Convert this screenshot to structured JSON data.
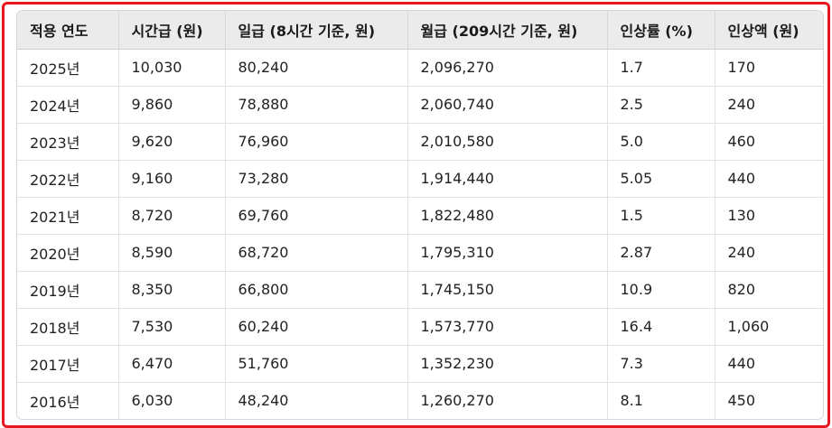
{
  "table": {
    "headers": [
      "적용 연도",
      "시간급 (원)",
      "일급 (8시간 기준, 원)",
      "월급 (209시간 기준, 원)",
      "인상률 (%)",
      "인상액 (원)"
    ],
    "rows": [
      [
        "2025년",
        "10,030",
        "80,240",
        "2,096,270",
        "1.7",
        "170"
      ],
      [
        "2024년",
        "9,860",
        "78,880",
        "2,060,740",
        "2.5",
        "240"
      ],
      [
        "2023년",
        "9,620",
        "76,960",
        "2,010,580",
        "5.0",
        "460"
      ],
      [
        "2022년",
        "9,160",
        "73,280",
        "1,914,440",
        "5.05",
        "440"
      ],
      [
        "2021년",
        "8,720",
        "69,760",
        "1,822,480",
        "1.5",
        "130"
      ],
      [
        "2020년",
        "8,590",
        "68,720",
        "1,795,310",
        "2.87",
        "240"
      ],
      [
        "2019년",
        "8,350",
        "66,800",
        "1,745,150",
        "10.9",
        "820"
      ],
      [
        "2018년",
        "7,530",
        "60,240",
        "1,573,770",
        "16.4",
        "1,060"
      ],
      [
        "2017년",
        "6,470",
        "51,760",
        "1,352,230",
        "7.3",
        "440"
      ],
      [
        "2016년",
        "6,030",
        "48,240",
        "1,260,270",
        "8.1",
        "450"
      ]
    ]
  },
  "colors": {
    "frame_border": "#e8161e",
    "header_bg": "#ebebeb"
  }
}
